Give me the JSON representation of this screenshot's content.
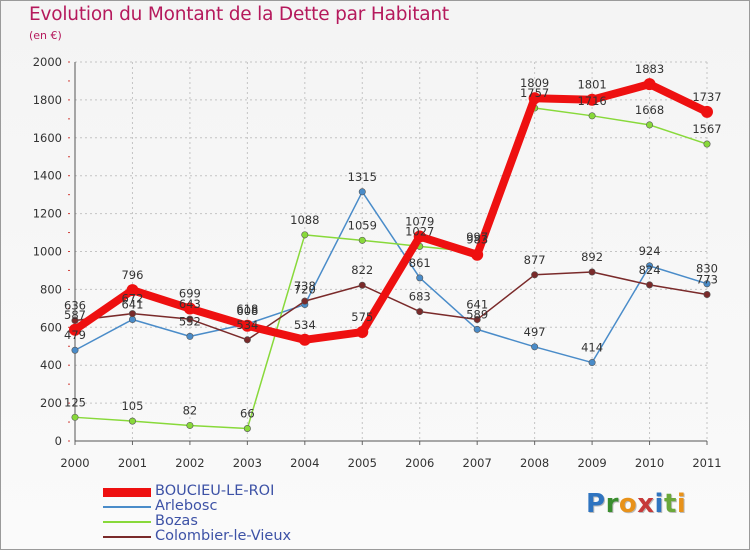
{
  "chart_data": {
    "type": "line",
    "title": "Evolution du Montant de la Dette par Habitant",
    "subtitle": "(en €)",
    "x": [
      "2000",
      "2001",
      "2002",
      "2003",
      "2004",
      "2005",
      "2006",
      "2007",
      "2008",
      "2009",
      "2010",
      "2011"
    ],
    "ylim": [
      0,
      2000
    ],
    "yticks": [
      "0",
      "200",
      "400",
      "600",
      "800",
      "1000",
      "1200",
      "1400",
      "1600",
      "1800",
      "2000"
    ],
    "grid": true,
    "legend_position": "bottom-left",
    "series": [
      {
        "name": "BOUCIEU-LE-ROI",
        "color": "#ee1010",
        "values": [
          587,
          796,
          699,
          608,
          534,
          575,
          1079,
          983,
          1809,
          1801,
          1883,
          1737
        ]
      },
      {
        "name": "Arlebosc",
        "color": "#4a8cc9",
        "values": [
          479,
          641,
          552,
          618,
          720,
          1315,
          861,
          589,
          497,
          414,
          924,
          830
        ]
      },
      {
        "name": "Bozas",
        "color": "#88d93a",
        "values": [
          125,
          105,
          82,
          66,
          1088,
          1059,
          1027,
          997,
          1757,
          1716,
          1668,
          1567
        ]
      },
      {
        "name": "Colombier-le-Vieux",
        "color": "#7a2a2a",
        "values": [
          636,
          672,
          643,
          534,
          738,
          822,
          683,
          641,
          877,
          892,
          824,
          773
        ]
      }
    ]
  },
  "logo": {
    "letters": [
      "P",
      "r",
      "o",
      "x",
      "i",
      "t",
      "i"
    ],
    "colors": [
      "#2f74c0",
      "#3a8e2f",
      "#e8921a",
      "#c63a3a",
      "#2f74c0",
      "#6aa83a",
      "#e8921a"
    ]
  }
}
